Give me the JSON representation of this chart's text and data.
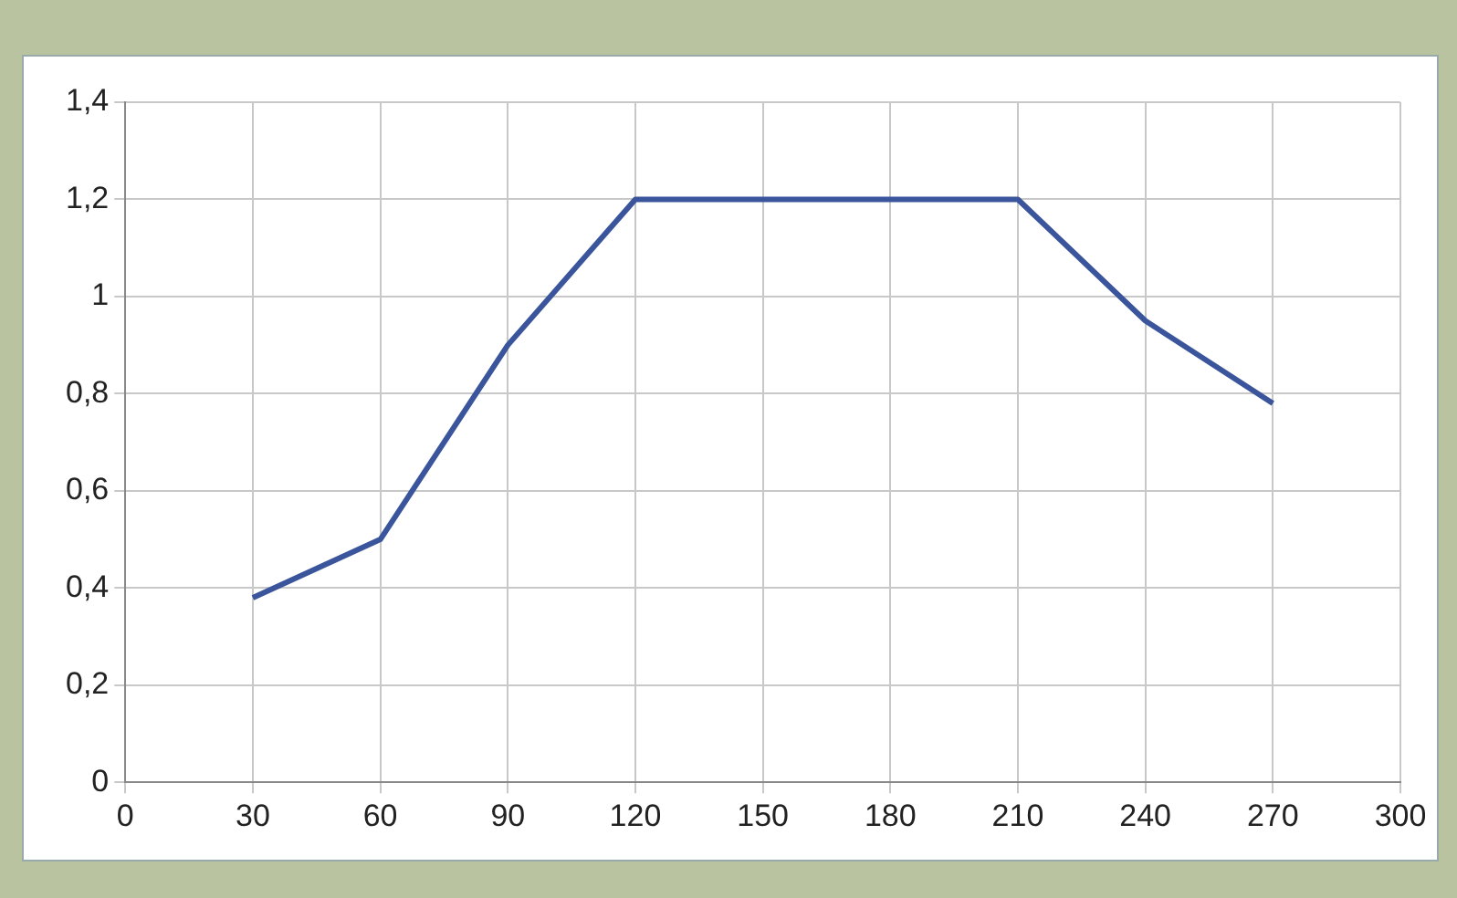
{
  "chart_data": {
    "type": "line",
    "x": [
      30,
      60,
      90,
      120,
      150,
      180,
      210,
      240,
      270
    ],
    "series": [
      {
        "color": "#3a559b",
        "values": [
          0.38,
          0.5,
          0.9,
          1.2,
          1.2,
          1.2,
          1.2,
          0.95,
          0.78
        ]
      }
    ],
    "xlim": [
      0,
      300
    ],
    "xticks": [
      0,
      30,
      60,
      90,
      120,
      150,
      180,
      210,
      240,
      270,
      300
    ],
    "ylim": [
      0,
      1.4
    ],
    "yticks": [
      0,
      {
        "value": 0.2,
        "label": "0,2"
      },
      {
        "value": 0.4,
        "label": "0,4"
      },
      {
        "value": 0.6,
        "label": "0,6"
      },
      {
        "value": 0.8,
        "label": "0,8"
      },
      1,
      {
        "value": 1.2,
        "label": "1,2"
      },
      {
        "value": 1.4,
        "label": "1,4"
      }
    ],
    "grid": true,
    "legend": false,
    "marker": "none",
    "line_style": "solid"
  }
}
